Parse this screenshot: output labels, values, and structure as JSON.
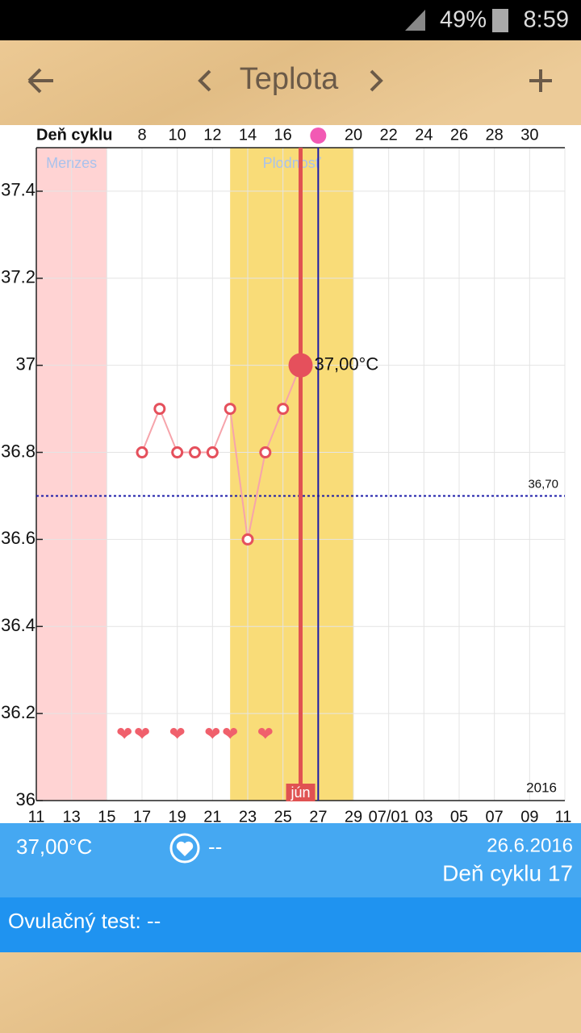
{
  "status_bar": {
    "battery": "49%",
    "time": "8:59"
  },
  "header": {
    "title": "Teplota"
  },
  "chart_data": {
    "type": "line",
    "x_label": "Deň cyklu",
    "x": [
      "2016-06-17",
      "2016-06-18",
      "2016-06-19",
      "2016-06-20",
      "2016-06-21",
      "2016-06-22",
      "2016-06-23",
      "2016-06-24",
      "2016-06-25",
      "2016-06-26"
    ],
    "series": [
      {
        "color": "#f6a4ab",
        "marker_color": "#e5505c",
        "values": [
          36.8,
          36.9,
          36.8,
          36.8,
          36.8,
          36.9,
          36.6,
          36.8,
          36.9,
          37
        ]
      }
    ],
    "value_labels": [
      null,
      null,
      null,
      null,
      null,
      null,
      null,
      null,
      null,
      "37,00°C"
    ],
    "xlim": [
      "2016-06-11",
      "2016-07-11"
    ],
    "xticks": [
      {
        "value": "2016-06-11",
        "label": "11"
      },
      {
        "value": "2016-06-13",
        "label": "13"
      },
      {
        "value": "2016-06-15",
        "label": "15"
      },
      {
        "value": "2016-06-17",
        "label": "17"
      },
      {
        "value": "2016-06-19",
        "label": "19"
      },
      {
        "value": "2016-06-21",
        "label": "21"
      },
      {
        "value": "2016-06-23",
        "label": "23"
      },
      {
        "value": "2016-06-25",
        "label": "25"
      },
      {
        "value": "2016-06-27",
        "label": "27"
      },
      {
        "value": "2016-06-29",
        "label": "29"
      },
      {
        "value": "2016-07-01",
        "label": "07/01"
      },
      {
        "value": "2016-07-03",
        "label": "03"
      },
      {
        "value": "2016-07-05",
        "label": "05"
      },
      {
        "value": "2016-07-07",
        "label": "07"
      },
      {
        "value": "2016-07-09",
        "label": "09"
      },
      {
        "value": "2016-07-11",
        "label": "11"
      }
    ],
    "top_xticks": [
      {
        "value": "2016-06-17",
        "label": "8"
      },
      {
        "value": "2016-06-19",
        "label": "10"
      },
      {
        "value": "2016-06-21",
        "label": "12"
      },
      {
        "value": "2016-06-23",
        "label": "14"
      },
      {
        "value": "2016-06-25",
        "label": "16"
      },
      {
        "value": "2016-06-29",
        "label": "20"
      },
      {
        "value": "2016-07-01",
        "label": "22"
      },
      {
        "value": "2016-07-03",
        "label": "24"
      },
      {
        "value": "2016-07-05",
        "label": "26"
      },
      {
        "value": "2016-07-07",
        "label": "28"
      },
      {
        "value": "2016-07-09",
        "label": "30"
      }
    ],
    "ylim": [
      36,
      37.5
    ],
    "yticks": [
      36,
      36.2,
      36.4,
      36.6,
      36.8,
      37,
      37.2,
      37.4
    ],
    "grid": true,
    "hlines": [
      {
        "value": 36.7,
        "label": "36,70"
      }
    ],
    "hline_color": "#1a1aa8",
    "bands": [
      {
        "label": "Menzes",
        "start": "2016-06-11",
        "end": "2016-06-15",
        "color": "#ffd3d3",
        "label_color": "#a9c2ec"
      },
      {
        "label": "Plodnosť",
        "start": "2016-06-22",
        "end": "2016-06-29",
        "color": "#f9dc78",
        "label_color": "#a9c2ec"
      }
    ],
    "selected_date": "2016-06-26",
    "selected_color": "#e05252",
    "month_label": "jún",
    "ovulation_date": "2016-06-27",
    "ovulation_color": "#1a1aa8",
    "ovulation_marker_color": "#f25ab4",
    "year": "2016",
    "hearts": [
      "2016-06-16",
      "2016-06-17",
      "2016-06-19",
      "2016-06-21",
      "2016-06-22",
      "2016-06-24"
    ],
    "heart_color": "#f0606c"
  },
  "info": {
    "temperature": "37,00°C",
    "intercourse": "--",
    "date": "26.6.2016",
    "cycle_day": "Deň cyklu 17",
    "ovulation_test": "Ovulačný test: --"
  }
}
